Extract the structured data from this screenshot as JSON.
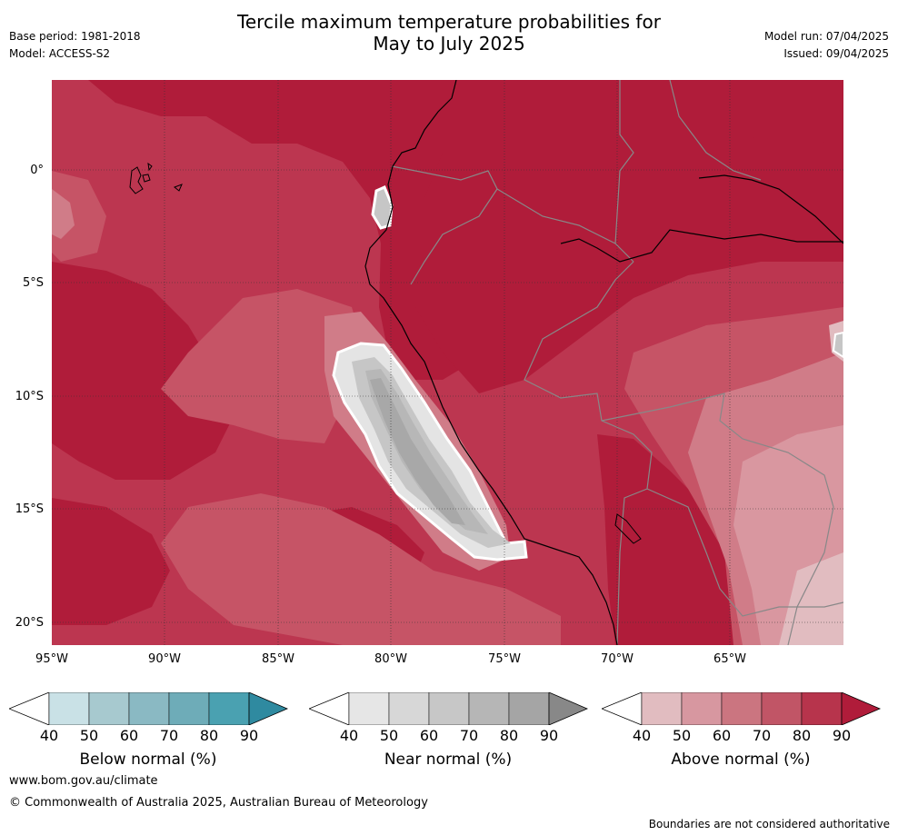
{
  "header": {
    "title_line1": "Tercile maximum temperature probabilities for",
    "title_line2": "May to July 2025",
    "base_period": "Base period: 1981-2018",
    "model": "Model: ACCESS-S2",
    "model_run": "Model run: 07/04/2025",
    "issued": "Issued: 09/04/2025"
  },
  "map": {
    "lat_labels": [
      "0°",
      "5°S",
      "10°S",
      "15°S",
      "20°S"
    ],
    "lon_labels": [
      "95°W",
      "90°W",
      "85°W",
      "80°W",
      "75°W",
      "70°W",
      "65°W"
    ],
    "colors": {
      "above_90": "#b01c3a",
      "above_80": "#bc3650",
      "above_70": "#c65466",
      "above_60": "#d07c88",
      "above_50": "#d997a0",
      "above_40": "#e1bcc0",
      "near_90": "#a8a8a8",
      "near_80": "#b7b7b7",
      "near_70": "#c6c6c6",
      "near_50": "#e4e4e4"
    }
  },
  "legends": [
    {
      "title": "Below normal (%)",
      "ticks": [
        "40",
        "50",
        "60",
        "70",
        "80",
        "90"
      ],
      "colors": [
        "#ffffff",
        "#c9e1e6",
        "#a7c9cf",
        "#8ab9c3",
        "#6eacb8",
        "#4aa1b1",
        "#2f8aa0"
      ]
    },
    {
      "title": "Near normal (%)",
      "ticks": [
        "40",
        "50",
        "60",
        "70",
        "80",
        "90"
      ],
      "colors": [
        "#ffffff",
        "#e6e6e6",
        "#d7d7d7",
        "#c7c7c7",
        "#b6b6b6",
        "#a5a5a5",
        "#888888"
      ]
    },
    {
      "title": "Above normal (%)",
      "ticks": [
        "40",
        "50",
        "60",
        "70",
        "80",
        "90"
      ],
      "colors": [
        "#ffffff",
        "#e1bcc0",
        "#d797a0",
        "#cb7580",
        "#c15566",
        "#b7344c",
        "#b01c3a"
      ]
    }
  ],
  "footer": {
    "website": "www.bom.gov.au/climate",
    "copyright": "© Commonwealth of Australia 2025, Australian Bureau of Meteorology",
    "disclaimer": "Boundaries are not considered authoritative"
  }
}
